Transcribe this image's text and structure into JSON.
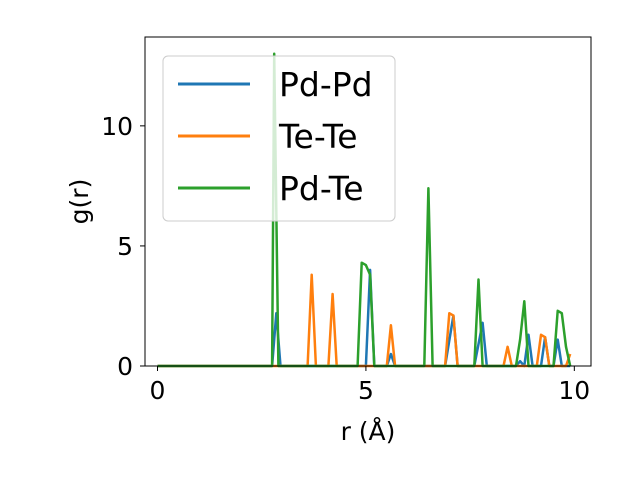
{
  "chart_data": {
    "type": "line",
    "title": "",
    "xlabel": "r (Å)",
    "ylabel": "g(r)",
    "xlim": [
      -0.3,
      10.4
    ],
    "ylim": [
      0,
      13.7
    ],
    "xticks": [
      0,
      5,
      10
    ],
    "yticks": [
      0,
      5,
      10
    ],
    "xtick_labels": [
      "0",
      "5",
      "10"
    ],
    "ytick_labels": [
      "0",
      "5",
      "10"
    ],
    "grid": false,
    "legend_position": "top-left",
    "series": [
      {
        "name": "Pd-Pd",
        "color": "#1f77b4",
        "x": [
          0,
          2.7,
          2.75,
          2.85,
          2.95,
          3.0,
          4.9,
          5.0,
          5.1,
          5.2,
          5.5,
          5.6,
          5.7,
          6.8,
          6.9,
          7.1,
          7.2,
          7.6,
          7.8,
          7.9,
          8.6,
          8.7,
          8.8,
          8.9,
          9.0,
          9.2,
          9.3,
          9.4,
          9.5,
          9.6,
          9.7,
          9.8,
          9.9
        ],
        "y": [
          0,
          0,
          0,
          2.2,
          0,
          0,
          0,
          0,
          4.0,
          0,
          0,
          0.5,
          0,
          0,
          0,
          2.1,
          0,
          0,
          1.8,
          0,
          0,
          0.2,
          0,
          1.3,
          0,
          0,
          1.2,
          0,
          0,
          1.1,
          0,
          0,
          0
        ]
      },
      {
        "name": "Te-Te",
        "color": "#ff7f0e",
        "x": [
          0,
          3.6,
          3.7,
          3.8,
          4.1,
          4.2,
          4.3,
          5.5,
          5.6,
          5.7,
          6.9,
          7.0,
          7.1,
          7.2,
          8.3,
          8.4,
          8.5,
          9.1,
          9.2,
          9.3,
          9.4,
          9.8,
          9.9
        ],
        "y": [
          0,
          0,
          3.8,
          0,
          0,
          3.0,
          0,
          0,
          1.7,
          0,
          0,
          2.2,
          2.1,
          0,
          0,
          0.8,
          0,
          0,
          1.3,
          1.2,
          0,
          0,
          0.5
        ]
      },
      {
        "name": "Pd-Te",
        "color": "#2ca02c",
        "x": [
          0,
          2.7,
          2.75,
          2.8,
          2.9,
          4.8,
          4.9,
          5.0,
          5.1,
          5.2,
          6.4,
          6.5,
          6.6,
          7.6,
          7.7,
          7.8,
          8.6,
          8.7,
          8.8,
          8.9,
          9.5,
          9.6,
          9.7,
          9.8,
          9.9
        ],
        "y": [
          0,
          0,
          0,
          13.0,
          0,
          0,
          4.3,
          4.2,
          3.8,
          0,
          0,
          7.4,
          0,
          0,
          3.6,
          0,
          0,
          1.1,
          2.7,
          0,
          0,
          2.3,
          2.2,
          0.8,
          0
        ]
      }
    ]
  }
}
